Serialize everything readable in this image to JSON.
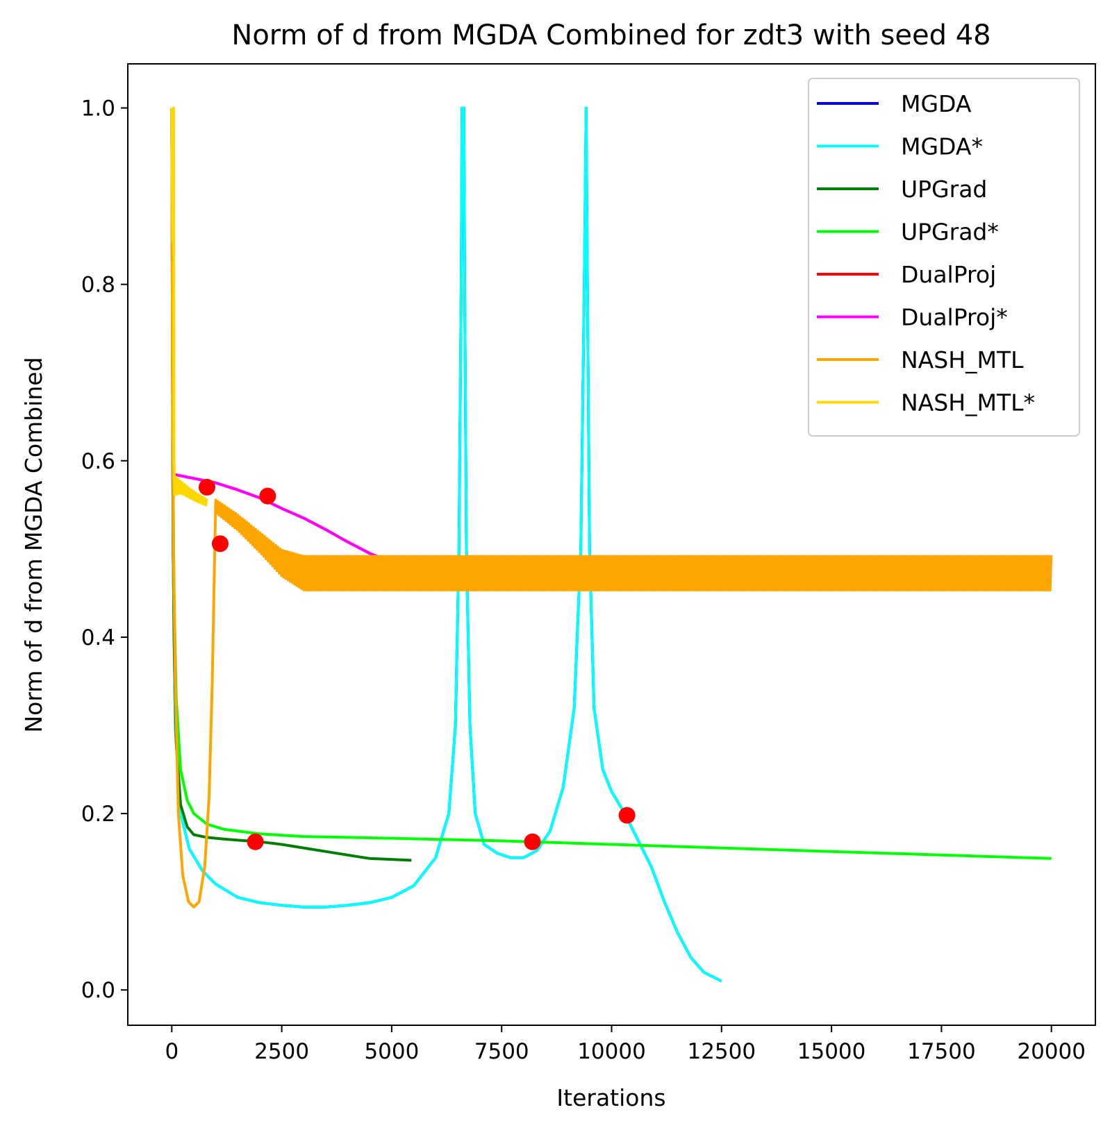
{
  "chart_data": {
    "type": "line",
    "title": "Norm of d from MGDA Combined for zdt3 with seed 48",
    "xlabel": "Iterations",
    "ylabel": "Norm of d from MGDA Combined",
    "xlim": [
      -1000,
      21000
    ],
    "ylim": [
      -0.04,
      1.05
    ],
    "xticks": [
      0,
      2500,
      5000,
      7500,
      10000,
      12500,
      15000,
      17500,
      20000
    ],
    "xtick_labels": [
      "0",
      "2500",
      "5000",
      "7500",
      "10000",
      "12500",
      "15000",
      "17500",
      "20000"
    ],
    "yticks": [
      0.0,
      0.2,
      0.4,
      0.6,
      0.8,
      1.0
    ],
    "ytick_labels": [
      "0.0",
      "0.2",
      "0.4",
      "0.6",
      "0.8",
      "1.0"
    ],
    "grid": false,
    "legend_position": "top-right",
    "series": [
      {
        "name": "MGDA",
        "color": "#0000ff",
        "points": [
          [
            0,
            1.0
          ],
          [
            30,
            0.5
          ],
          [
            80,
            0.3
          ],
          [
            200,
            0.2
          ],
          [
            400,
            0.16
          ],
          [
            700,
            0.135
          ],
          [
            1000,
            0.12
          ],
          [
            1500,
            0.105
          ],
          [
            2000,
            0.099
          ],
          [
            2500,
            0.096
          ],
          [
            3000,
            0.094
          ],
          [
            3500,
            0.094
          ],
          [
            4000,
            0.096
          ],
          [
            4500,
            0.099
          ],
          [
            5000,
            0.105
          ],
          [
            5500,
            0.118
          ],
          [
            6000,
            0.15
          ],
          [
            6300,
            0.2
          ],
          [
            6450,
            0.3
          ],
          [
            6530,
            0.5
          ],
          [
            6580,
            0.8
          ],
          [
            6600,
            1.0
          ],
          [
            6640,
            1.0
          ],
          [
            6660,
            0.8
          ],
          [
            6700,
            0.5
          ],
          [
            6780,
            0.3
          ],
          [
            6900,
            0.2
          ],
          [
            7100,
            0.165
          ],
          [
            7400,
            0.155
          ],
          [
            7700,
            0.15
          ],
          [
            8000,
            0.15
          ],
          [
            8300,
            0.158
          ],
          [
            8600,
            0.18
          ],
          [
            8900,
            0.23
          ],
          [
            9150,
            0.32
          ],
          [
            9300,
            0.5
          ],
          [
            9380,
            0.8
          ],
          [
            9420,
            1.0
          ],
          [
            9450,
            0.8
          ],
          [
            9500,
            0.5
          ],
          [
            9600,
            0.32
          ],
          [
            9800,
            0.25
          ],
          [
            10000,
            0.225
          ],
          [
            10300,
            0.2
          ],
          [
            10600,
            0.17
          ],
          [
            10900,
            0.14
          ],
          [
            11200,
            0.1
          ],
          [
            11500,
            0.065
          ],
          [
            11800,
            0.037
          ],
          [
            12100,
            0.02
          ],
          [
            12500,
            0.01
          ]
        ]
      },
      {
        "name": "MGDA*",
        "color": "#00ffff",
        "points": [
          [
            0,
            1.0
          ],
          [
            30,
            0.5
          ],
          [
            80,
            0.3
          ],
          [
            200,
            0.2
          ],
          [
            400,
            0.16
          ],
          [
            700,
            0.135
          ],
          [
            1000,
            0.12
          ],
          [
            1500,
            0.105
          ],
          [
            2000,
            0.099
          ],
          [
            2500,
            0.096
          ],
          [
            3000,
            0.094
          ],
          [
            3500,
            0.094
          ],
          [
            4000,
            0.096
          ],
          [
            4500,
            0.099
          ],
          [
            5000,
            0.105
          ],
          [
            5500,
            0.118
          ],
          [
            6000,
            0.15
          ],
          [
            6300,
            0.2
          ],
          [
            6450,
            0.3
          ],
          [
            6530,
            0.5
          ],
          [
            6580,
            0.8
          ],
          [
            6600,
            1.0
          ],
          [
            6640,
            1.0
          ],
          [
            6660,
            0.8
          ],
          [
            6700,
            0.5
          ],
          [
            6780,
            0.3
          ],
          [
            6900,
            0.2
          ],
          [
            7100,
            0.165
          ],
          [
            7400,
            0.155
          ],
          [
            7700,
            0.15
          ],
          [
            8000,
            0.15
          ],
          [
            8300,
            0.158
          ],
          [
            8600,
            0.18
          ],
          [
            8900,
            0.23
          ],
          [
            9150,
            0.32
          ],
          [
            9300,
            0.5
          ],
          [
            9380,
            0.8
          ],
          [
            9420,
            1.0
          ],
          [
            9450,
            0.8
          ],
          [
            9500,
            0.5
          ],
          [
            9600,
            0.32
          ],
          [
            9800,
            0.25
          ],
          [
            10000,
            0.225
          ],
          [
            10300,
            0.2
          ],
          [
            10600,
            0.17
          ],
          [
            10900,
            0.14
          ],
          [
            11200,
            0.1
          ],
          [
            11500,
            0.065
          ],
          [
            11800,
            0.037
          ],
          [
            12100,
            0.02
          ],
          [
            12500,
            0.01
          ]
        ]
      },
      {
        "name": "UPGrad",
        "color": "#008000",
        "points": [
          [
            0,
            1.0
          ],
          [
            20,
            0.6
          ],
          [
            50,
            0.4
          ],
          [
            100,
            0.28
          ],
          [
            200,
            0.21
          ],
          [
            350,
            0.185
          ],
          [
            500,
            0.176
          ],
          [
            800,
            0.173
          ],
          [
            1200,
            0.171
          ],
          [
            2000,
            0.168
          ],
          [
            2500,
            0.165
          ],
          [
            3000,
            0.161
          ],
          [
            3500,
            0.157
          ],
          [
            4000,
            0.153
          ],
          [
            4500,
            0.149
          ],
          [
            5000,
            0.148
          ],
          [
            5450,
            0.147
          ]
        ]
      },
      {
        "name": "UPGrad*",
        "color": "#00ff00",
        "points": [
          [
            0,
            1.0
          ],
          [
            20,
            0.65
          ],
          [
            50,
            0.45
          ],
          [
            100,
            0.33
          ],
          [
            200,
            0.25
          ],
          [
            350,
            0.215
          ],
          [
            500,
            0.2
          ],
          [
            800,
            0.188
          ],
          [
            1200,
            0.182
          ],
          [
            2000,
            0.177
          ],
          [
            3000,
            0.174
          ],
          [
            5000,
            0.172
          ],
          [
            7500,
            0.169
          ],
          [
            10000,
            0.165
          ],
          [
            12500,
            0.161
          ],
          [
            15000,
            0.157
          ],
          [
            17500,
            0.153
          ],
          [
            20000,
            0.149
          ]
        ]
      },
      {
        "name": "DualProj",
        "color": "#ff0000",
        "points": [
          [
            0,
            0.585
          ],
          [
            500,
            0.58
          ],
          [
            1000,
            0.575
          ],
          [
            1500,
            0.567
          ],
          [
            2000,
            0.558
          ],
          [
            2500,
            0.546
          ],
          [
            3000,
            0.535
          ],
          [
            3500,
            0.522
          ],
          [
            4000,
            0.508
          ],
          [
            4500,
            0.495
          ],
          [
            5000,
            0.485
          ],
          [
            5500,
            0.48
          ],
          [
            5800,
            0.478
          ]
        ]
      },
      {
        "name": "DualProj*",
        "color": "#ff00ff",
        "points": [
          [
            0,
            0.585
          ],
          [
            500,
            0.58
          ],
          [
            1000,
            0.575
          ],
          [
            1500,
            0.567
          ],
          [
            2000,
            0.558
          ],
          [
            2500,
            0.546
          ],
          [
            3000,
            0.535
          ],
          [
            3500,
            0.522
          ],
          [
            4000,
            0.508
          ],
          [
            4500,
            0.495
          ],
          [
            5000,
            0.485
          ],
          [
            5500,
            0.48
          ],
          [
            5800,
            0.478
          ]
        ]
      },
      {
        "name": "NASH_MTL",
        "color": "#ffa500",
        "points": [
          [
            0,
            1.0
          ],
          [
            15,
            0.7
          ],
          [
            40,
            0.5
          ],
          [
            80,
            0.35
          ],
          [
            150,
            0.2
          ],
          [
            250,
            0.13
          ],
          [
            380,
            0.1
          ],
          [
            500,
            0.094
          ],
          [
            620,
            0.1
          ],
          [
            750,
            0.14
          ],
          [
            850,
            0.22
          ],
          [
            920,
            0.35
          ],
          [
            970,
            0.48
          ],
          [
            1000,
            0.555
          ]
        ],
        "band": {
          "x": [
            1000,
            1500,
            2000,
            2500,
            3000,
            20000
          ],
          "upper": [
            0.557,
            0.54,
            0.52,
            0.5,
            0.493,
            0.493
          ],
          "lower": [
            0.54,
            0.52,
            0.495,
            0.468,
            0.452,
            0.452
          ]
        }
      },
      {
        "name": "NASH_MTL*",
        "color": "#ffd700",
        "points": [
          [
            0,
            1.0
          ],
          [
            20,
            0.85
          ],
          [
            40,
            1.0
          ],
          [
            50,
            0.6
          ],
          [
            60,
            0.58
          ]
        ],
        "band": {
          "x": [
            40,
            200,
            400,
            600,
            800
          ],
          "upper": [
            0.585,
            0.578,
            0.57,
            0.563,
            0.557
          ],
          "lower": [
            0.56,
            0.562,
            0.557,
            0.552,
            0.548
          ]
        }
      }
    ],
    "markers": {
      "color": "#ff0000",
      "points": [
        [
          800,
          0.57
        ],
        [
          2180,
          0.56
        ],
        [
          1100,
          0.506
        ],
        [
          1900,
          0.168
        ],
        [
          8200,
          0.168
        ],
        [
          10350,
          0.198
        ]
      ]
    }
  }
}
